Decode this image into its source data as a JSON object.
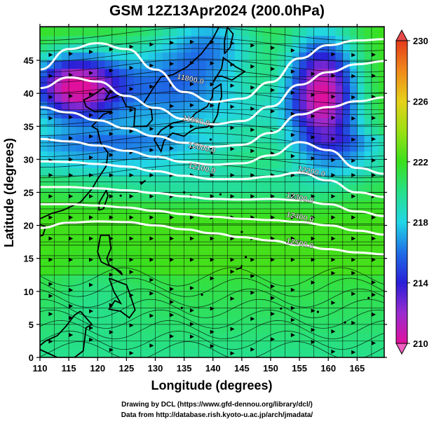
{
  "title": "GSM 12Z13Apr2024 (200.0hPa)",
  "credits": [
    "Drawing by DCL (https://www.gfd-dennou.org/library/dcl/)",
    "Data from http://database.rish.kyoto-u.ac.jp/arch/jmadata/"
  ],
  "map": {
    "xlabel": "Longitude (degrees)",
    "ylabel": "Latitude  (degrees)",
    "lon_range": [
      110,
      170
    ],
    "lat_range": [
      0,
      50
    ],
    "x_ticks": [
      "110",
      "115",
      "120",
      "125",
      "130",
      "135",
      "140",
      "145",
      "150",
      "155",
      "160",
      "165"
    ],
    "y_ticks": [
      "0",
      "5",
      "10",
      "15",
      "20",
      "25",
      "30",
      "35",
      "40",
      "45"
    ],
    "grid": true
  },
  "colorbar": {
    "min": 210,
    "max": 230,
    "tick_labels": [
      "210",
      "214",
      "218",
      "222",
      "226",
      "230"
    ],
    "colors": [
      "#e0109c",
      "#9a2cd0",
      "#2a1fd8",
      "#1e6ee6",
      "#22d6e6",
      "#26e08a",
      "#3ae01c",
      "#9ae014",
      "#e6d01a",
      "#f08a1a",
      "#e43a1a"
    ]
  },
  "contours": [
    {
      "label": "11800.0",
      "points": [
        [
          110,
          43.6
        ],
        [
          115,
          46.7
        ],
        [
          120,
          47.6
        ],
        [
          125,
          46.7
        ],
        [
          130,
          43.6
        ],
        [
          135,
          40.2
        ],
        [
          140,
          38.7
        ],
        [
          145,
          39.2
        ],
        [
          150,
          41.7
        ],
        [
          155,
          45.3
        ],
        [
          160,
          47.3
        ],
        [
          165,
          48.0
        ],
        [
          170,
          48.2
        ]
      ]
    },
    {
      "label": "11900.0",
      "points": [
        [
          110,
          40.8
        ],
        [
          115,
          42.4
        ],
        [
          120,
          41.8
        ],
        [
          125,
          39.6
        ],
        [
          130,
          37.8
        ],
        [
          135,
          36.1
        ],
        [
          140,
          35.3
        ],
        [
          145,
          35.8
        ],
        [
          150,
          38.0
        ],
        [
          155,
          41.3
        ],
        [
          160,
          43.2
        ],
        [
          165,
          44.4
        ],
        [
          170,
          44.9
        ]
      ]
    },
    {
      "label": "12000.0",
      "points": [
        [
          110,
          37.9
        ],
        [
          115,
          37.1
        ],
        [
          120,
          35.9
        ],
        [
          125,
          34.7
        ],
        [
          130,
          33.5
        ],
        [
          135,
          32.5
        ],
        [
          140,
          31.9
        ],
        [
          145,
          32.2
        ],
        [
          150,
          34.0
        ],
        [
          155,
          36.8
        ],
        [
          160,
          37.9
        ],
        [
          165,
          38.8
        ],
        [
          170,
          39.4
        ]
      ]
    },
    {
      "label": "12100.0",
      "points": [
        [
          110,
          33.1
        ],
        [
          115,
          32.7
        ],
        [
          120,
          32.1
        ],
        [
          125,
          31.3
        ],
        [
          130,
          30.4
        ],
        [
          135,
          29.6
        ],
        [
          140,
          29.2
        ],
        [
          145,
          29.4
        ],
        [
          150,
          30.6
        ],
        [
          155,
          32.6
        ],
        [
          160,
          31.4
        ],
        [
          165,
          28.7
        ],
        [
          170,
          27.8
        ]
      ]
    },
    {
      "label": "12200.0",
      "points": [
        [
          110,
          29.7
        ],
        [
          115,
          29.6
        ],
        [
          120,
          29.3
        ],
        [
          125,
          28.9
        ],
        [
          130,
          28.2
        ],
        [
          135,
          27.5
        ],
        [
          140,
          27.0
        ],
        [
          145,
          27.0
        ],
        [
          150,
          27.4
        ],
        [
          155,
          28.0
        ],
        [
          160,
          26.8
        ],
        [
          165,
          25.0
        ],
        [
          170,
          24.3
        ]
      ]
    },
    {
      "label": "12300.0",
      "points": [
        [
          110,
          25.8
        ],
        [
          115,
          25.8
        ],
        [
          120,
          25.6
        ],
        [
          125,
          25.3
        ],
        [
          130,
          24.9
        ],
        [
          135,
          24.4
        ],
        [
          140,
          24.0
        ],
        [
          145,
          23.9
        ],
        [
          150,
          24.0
        ],
        [
          155,
          23.8
        ],
        [
          160,
          23.2
        ],
        [
          165,
          22.1
        ],
        [
          170,
          21.4
        ]
      ]
    },
    {
      "label": "12400.0",
      "points": [
        [
          110,
          23.2
        ],
        [
          115,
          23.2
        ],
        [
          120,
          23.0
        ],
        [
          125,
          22.7
        ],
        [
          130,
          22.2
        ],
        [
          135,
          21.7
        ],
        [
          140,
          21.3
        ],
        [
          145,
          21.0
        ],
        [
          150,
          20.8
        ],
        [
          155,
          20.5
        ],
        [
          160,
          20.0
        ],
        [
          165,
          19.2
        ],
        [
          170,
          18.6
        ]
      ]
    },
    {
      "label": "12500.0",
      "points": [
        [
          110,
          19.6
        ],
        [
          115,
          20.4
        ],
        [
          120,
          20.6
        ],
        [
          125,
          20.5
        ],
        [
          130,
          20.0
        ],
        [
          135,
          19.4
        ],
        [
          140,
          18.8
        ],
        [
          145,
          18.2
        ],
        [
          150,
          17.7
        ],
        [
          155,
          17.0
        ],
        [
          160,
          16.4
        ],
        [
          165,
          15.9
        ],
        [
          170,
          15.6
        ]
      ]
    }
  ],
  "contour_labels": [
    {
      "text": "11800.0",
      "at": [
        136,
        41.8
      ]
    },
    {
      "text": "11900.0",
      "at": [
        137,
        35.5
      ]
    },
    {
      "text": "12000.0",
      "at": [
        138,
        31.4
      ]
    },
    {
      "text": "12100.0",
      "at": [
        138,
        28.3
      ]
    },
    {
      "text": "12200.0",
      "at": [
        157,
        27.8
      ]
    },
    {
      "text": "12300.0",
      "at": [
        155,
        23.8
      ]
    },
    {
      "text": "12400.0",
      "at": [
        155,
        20.9
      ]
    },
    {
      "text": "12500.0",
      "at": [
        155,
        16.9
      ]
    }
  ]
}
